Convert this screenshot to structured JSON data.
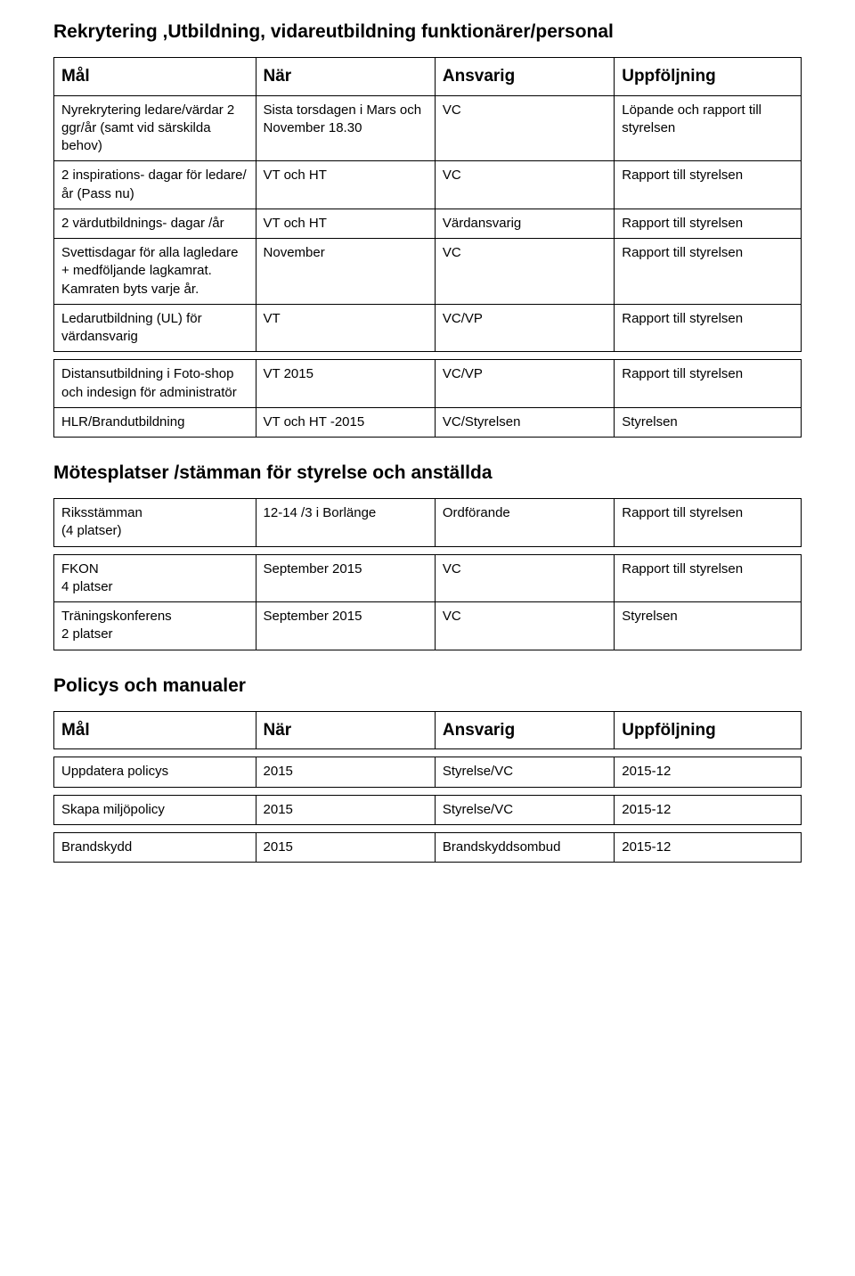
{
  "section1": {
    "title": "Rekrytering ,Utbildning, vidareutbildning funktionärer/personal",
    "headers": [
      "Mål",
      "När",
      "Ansvarig",
      "Uppföljning"
    ],
    "rows": [
      [
        "Nyrekrytering ledare/värdar 2 ggr/år (samt vid särskilda behov)",
        "Sista torsdagen i Mars och November 18.30",
        "VC",
        "Löpande och rapport till styrelsen"
      ],
      [
        " 2 inspirations- dagar för ledare/år (Pass nu)",
        "VT och HT",
        "VC",
        "Rapport till styrelsen"
      ],
      [
        "2 värdutbildnings- dagar /år",
        "VT och HT",
        "Värdansvarig",
        "Rapport till styrelsen"
      ],
      [
        "Svettisdagar för alla lagledare + medföljande lagkamrat. Kamraten byts varje år.",
        "November",
        "VC",
        "Rapport till styrelsen"
      ],
      [
        "Ledarutbildning (UL) för värdansvarig",
        "VT",
        "VC/VP",
        "Rapport till styrelsen"
      ]
    ],
    "rows2": [
      [
        "Distansutbildning i Foto-shop och indesign för administratör",
        "VT 2015",
        "VC/VP",
        "Rapport till styrelsen"
      ],
      [
        "HLR/Brandutbildning",
        "VT och HT -2015",
        "VC/Styrelsen",
        "Styrelsen"
      ]
    ]
  },
  "section2": {
    "title": "Mötesplatser /stämman för  styrelse och anställda",
    "rows": [
      [
        "Riksstämman\n(4 platser)",
        "12-14 /3 i Borlänge",
        "Ordförande",
        "Rapport till styrelsen"
      ]
    ],
    "rows2": [
      [
        "FKON\n4 platser",
        "September 2015",
        "VC",
        "Rapport till styrelsen"
      ],
      [
        "Träningskonferens\n2 platser",
        "September 2015",
        "VC",
        "Styrelsen"
      ]
    ]
  },
  "section3": {
    "title": "Policys och manualer",
    "headers": [
      "Mål",
      "När",
      "Ansvarig",
      "Uppföljning"
    ],
    "rows": [
      [
        "Uppdatera policys",
        "2015",
        "Styrelse/VC",
        "2015-12"
      ]
    ],
    "rows2": [
      [
        "Skapa miljöpolicy",
        "2015",
        "Styrelse/VC",
        "2015-12"
      ]
    ],
    "rows3": [
      [
        "Brandskydd",
        "2015",
        "Brandskyddsombud",
        "2015-12"
      ]
    ]
  }
}
